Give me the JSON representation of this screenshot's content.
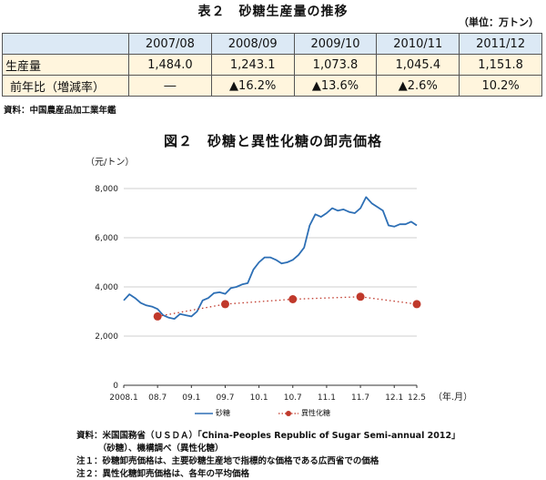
{
  "table_title": "表２　砂糖生産量の推移",
  "table_unit": "（単位：万トン）",
  "table": {
    "columns": [
      "",
      "2007/08",
      "2008/09",
      "2009/10",
      "2010/11",
      "2011/12"
    ],
    "rows": [
      {
        "label": "生産量",
        "values": [
          "1,484.0",
          "1,243.1",
          "1,073.8",
          "1,045.4",
          "1,151.8"
        ]
      },
      {
        "label": "前年比（増減率）",
        "values": [
          "―",
          "▲16.2%",
          "▲13.6%",
          "▲2.6%",
          "10.2%"
        ]
      }
    ]
  },
  "table_source": "資料：中国農産品加工業年鑑",
  "chart_title": "図２　砂糖と異性化糖の卸売価格",
  "chart_data": {
    "type": "line",
    "ylabel": "（元/トン）",
    "xlabel": "（年.月）",
    "ylim": [
      0,
      8000
    ],
    "yticks": [
      "0",
      "2,000",
      "4,000",
      "6,000",
      "8,000"
    ],
    "xticks": [
      "2008.1",
      "08.7",
      "09.1",
      "09.7",
      "10.1",
      "10.7",
      "11.1",
      "11.7",
      "12.1",
      "12.5"
    ],
    "grid": "horizontal",
    "legend_position": "bottom",
    "series": [
      {
        "name": "砂糖",
        "color": "#2d6fb5",
        "style": "solid",
        "x": [
          "2008.01",
          "2008.02",
          "2008.03",
          "2008.04",
          "2008.05",
          "2008.06",
          "2008.07",
          "2008.08",
          "2008.09",
          "2008.10",
          "2008.11",
          "2008.12",
          "2009.01",
          "2009.02",
          "2009.03",
          "2009.04",
          "2009.05",
          "2009.06",
          "2009.07",
          "2009.08",
          "2009.09",
          "2009.10",
          "2009.11",
          "2009.12",
          "2010.01",
          "2010.02",
          "2010.03",
          "2010.04",
          "2010.05",
          "2010.06",
          "2010.07",
          "2010.08",
          "2010.09",
          "2010.10",
          "2010.11",
          "2010.12",
          "2011.01",
          "2011.02",
          "2011.03",
          "2011.04",
          "2011.05",
          "2011.06",
          "2011.07",
          "2011.08",
          "2011.09",
          "2011.10",
          "2011.11",
          "2011.12",
          "2012.01",
          "2012.02",
          "2012.03",
          "2012.04",
          "2012.05"
        ],
        "values": [
          3450,
          3700,
          3550,
          3350,
          3250,
          3200,
          3100,
          2850,
          2750,
          2700,
          2900,
          2850,
          2800,
          3000,
          3450,
          3550,
          3750,
          3780,
          3720,
          3950,
          4000,
          4100,
          4150,
          4700,
          5000,
          5200,
          5200,
          5100,
          4950,
          5000,
          5100,
          5300,
          5600,
          6500,
          6950,
          6850,
          7000,
          7200,
          7100,
          7150,
          7050,
          7000,
          7200,
          7650,
          7400,
          7250,
          7100,
          6500,
          6450,
          6550,
          6550,
          6650,
          6500
        ]
      },
      {
        "name": "異性化糖",
        "color": "#c0392b",
        "style": "dotted",
        "x": [
          "2008.07",
          "2009.07",
          "2010.07",
          "2011.07",
          "2012.05"
        ],
        "values": [
          2800,
          3300,
          3500,
          3600,
          3300
        ]
      }
    ]
  },
  "footnotes": [
    "資料：米国国務省（ＵＳＤＡ）「China-Peoples Republic of Sugar Semi-annual 2012」",
    "　　　（砂糖）、機構調べ（異性化糖）",
    "注１：砂糖卸売価格は、主要砂糖生産地で指標的な価格である広西省での価格",
    "注２：異性化糖卸売価格は、各年の平均価格"
  ]
}
